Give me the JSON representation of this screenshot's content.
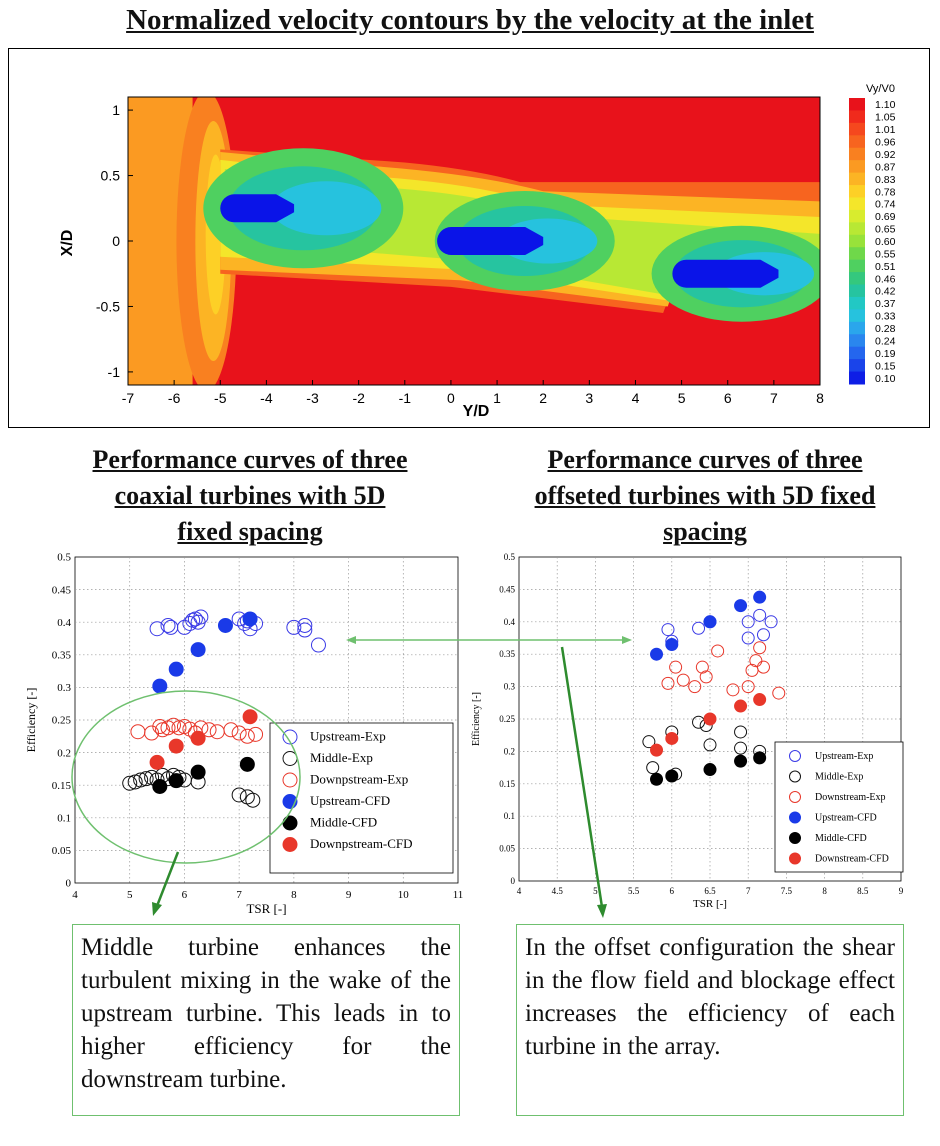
{
  "titles": {
    "top": "Normalized velocity contours by the velocity at the inlet",
    "left": "Performance curves of three\ncoaxial turbines with 5D\nfixed spacing",
    "right": "Performance curves of three\noffseted turbines with 5D fixed\nspacing"
  },
  "contour": {
    "xlabel": "Y/D",
    "ylabel": "X/D",
    "xticks": [
      "-7",
      "-6",
      "-5",
      "-4",
      "-3",
      "-2",
      "-1",
      "0",
      "1",
      "2",
      "3",
      "4",
      "5",
      "6",
      "7",
      "8"
    ],
    "yticks": [
      "1",
      "0.5",
      "0",
      "-0.5",
      "-1"
    ],
    "colorbar_title": "Vy/V0",
    "colorbar_levels": [
      "1.10",
      "1.05",
      "1.01",
      "0.96",
      "0.92",
      "0.87",
      "0.83",
      "0.78",
      "0.74",
      "0.69",
      "0.65",
      "0.60",
      "0.55",
      "0.51",
      "0.46",
      "0.42",
      "0.37",
      "0.33",
      "0.28",
      "0.24",
      "0.19",
      "0.15",
      "0.10"
    ],
    "colorbar_colors": [
      "#e8121b",
      "#f02a1c",
      "#f5481e",
      "#f7641f",
      "#f98020",
      "#fb9a22",
      "#fcb424",
      "#fdd026",
      "#f4e62a",
      "#d8ec2e",
      "#b8e834",
      "#98e23a",
      "#6fd84a",
      "#4fd060",
      "#34c87e",
      "#26c4a0",
      "#22c8c4",
      "#26c2de",
      "#2aa6ec",
      "#2a86ee",
      "#2466ee",
      "#1a44ea",
      "#0e1ee6"
    ]
  },
  "chart_data": [
    {
      "type": "scatter",
      "title": "",
      "xlabel": "TSR [-]",
      "ylabel": "Efficiency [-]",
      "xlim": [
        4,
        11
      ],
      "ylim": [
        0,
        0.5
      ],
      "xticks": [
        "4",
        "5",
        "6",
        "7",
        "8",
        "9",
        "10",
        "11"
      ],
      "yticks": [
        "0",
        "0.05",
        "0.1",
        "0.15",
        "0.2",
        "0.25",
        "0.3",
        "0.35",
        "0.4",
        "0.45",
        "0.5"
      ],
      "legend_position": "lower-right",
      "series": [
        {
          "name": "Upstream-Exp",
          "color": "#3a3ae6",
          "filled": false,
          "points": [
            [
              5.5,
              0.39
            ],
            [
              5.7,
              0.395
            ],
            [
              5.75,
              0.392
            ],
            [
              6.0,
              0.392
            ],
            [
              6.1,
              0.398
            ],
            [
              6.15,
              0.403
            ],
            [
              6.2,
              0.405
            ],
            [
              6.25,
              0.4
            ],
            [
              6.3,
              0.408
            ],
            [
              7.0,
              0.405
            ],
            [
              7.1,
              0.398
            ],
            [
              7.15,
              0.402
            ],
            [
              7.2,
              0.39
            ],
            [
              7.3,
              0.398
            ],
            [
              8.0,
              0.392
            ],
            [
              8.2,
              0.395
            ],
            [
              8.2,
              0.388
            ],
            [
              8.45,
              0.365
            ]
          ]
        },
        {
          "name": "Middle-Exp",
          "color": "#111111",
          "filled": false,
          "points": [
            [
              5.0,
              0.153
            ],
            [
              5.1,
              0.155
            ],
            [
              5.2,
              0.158
            ],
            [
              5.3,
              0.16
            ],
            [
              5.4,
              0.162
            ],
            [
              5.5,
              0.158
            ],
            [
              5.6,
              0.165
            ],
            [
              5.7,
              0.16
            ],
            [
              5.8,
              0.165
            ],
            [
              5.9,
              0.162
            ],
            [
              6.0,
              0.158
            ],
            [
              6.25,
              0.155
            ],
            [
              7.0,
              0.135
            ],
            [
              7.15,
              0.132
            ],
            [
              7.25,
              0.127
            ]
          ]
        },
        {
          "name": "Downpstream-Exp",
          "color": "#e8372a",
          "filled": false,
          "points": [
            [
              5.15,
              0.232
            ],
            [
              5.4,
              0.23
            ],
            [
              5.55,
              0.24
            ],
            [
              5.6,
              0.235
            ],
            [
              5.7,
              0.238
            ],
            [
              5.8,
              0.242
            ],
            [
              5.9,
              0.238
            ],
            [
              6.0,
              0.24
            ],
            [
              6.1,
              0.236
            ],
            [
              6.2,
              0.23
            ],
            [
              6.3,
              0.238
            ],
            [
              6.45,
              0.235
            ],
            [
              6.6,
              0.232
            ],
            [
              6.85,
              0.235
            ],
            [
              7.0,
              0.23
            ],
            [
              7.15,
              0.225
            ],
            [
              7.3,
              0.228
            ]
          ]
        },
        {
          "name": "Upstream-CFD",
          "color": "#1a3ae8",
          "filled": true,
          "points": [
            [
              5.55,
              0.302
            ],
            [
              5.85,
              0.328
            ],
            [
              6.25,
              0.358
            ],
            [
              6.75,
              0.395
            ],
            [
              7.2,
              0.405
            ]
          ]
        },
        {
          "name": "Middle-CFD",
          "color": "#000000",
          "filled": true,
          "points": [
            [
              5.55,
              0.148
            ],
            [
              5.85,
              0.157
            ],
            [
              6.25,
              0.17
            ],
            [
              7.15,
              0.182
            ]
          ]
        },
        {
          "name": "Downpstream-CFD",
          "color": "#e8372a",
          "filled": true,
          "points": [
            [
              5.5,
              0.185
            ],
            [
              5.85,
              0.21
            ],
            [
              6.25,
              0.222
            ],
            [
              7.2,
              0.255
            ]
          ]
        }
      ]
    },
    {
      "type": "scatter",
      "title": "",
      "xlabel": "TSR [-]",
      "ylabel": "Efficiency [-]",
      "xlim": [
        4,
        9
      ],
      "ylim": [
        0,
        0.5
      ],
      "xticks": [
        "4",
        "4.5",
        "5",
        "5.5",
        "6",
        "6.5",
        "7",
        "7.5",
        "8",
        "8.5",
        "9"
      ],
      "yticks": [
        "0",
        "0.05",
        "0.1",
        "0.15",
        "0.2",
        "0.25",
        "0.3",
        "0.35",
        "0.4",
        "0.45",
        "0.5"
      ],
      "legend_position": "lower-right",
      "series": [
        {
          "name": "Upstream-Exp",
          "color": "#3a3ae6",
          "filled": false,
          "points": [
            [
              5.95,
              0.388
            ],
            [
              6.0,
              0.37
            ],
            [
              6.35,
              0.39
            ],
            [
              6.5,
              0.4
            ],
            [
              7.0,
              0.375
            ],
            [
              7.0,
              0.4
            ],
            [
              7.15,
              0.41
            ],
            [
              7.2,
              0.38
            ],
            [
              7.3,
              0.4
            ]
          ]
        },
        {
          "name": "Middle-Exp",
          "color": "#111111",
          "filled": false,
          "points": [
            [
              5.7,
              0.215
            ],
            [
              5.75,
              0.175
            ],
            [
              6.0,
              0.23
            ],
            [
              6.05,
              0.165
            ],
            [
              6.35,
              0.245
            ],
            [
              6.45,
              0.24
            ],
            [
              6.5,
              0.21
            ],
            [
              6.9,
              0.205
            ],
            [
              6.9,
              0.23
            ],
            [
              7.15,
              0.2
            ]
          ]
        },
        {
          "name": "Downstream-Exp",
          "color": "#e8372a",
          "filled": false,
          "points": [
            [
              5.95,
              0.305
            ],
            [
              6.05,
              0.33
            ],
            [
              6.15,
              0.31
            ],
            [
              6.3,
              0.3
            ],
            [
              6.4,
              0.33
            ],
            [
              6.45,
              0.315
            ],
            [
              6.6,
              0.355
            ],
            [
              6.8,
              0.295
            ],
            [
              7.0,
              0.3
            ],
            [
              7.05,
              0.325
            ],
            [
              7.1,
              0.34
            ],
            [
              7.15,
              0.36
            ],
            [
              7.2,
              0.33
            ],
            [
              7.4,
              0.29
            ]
          ]
        },
        {
          "name": "Upstream-CFD",
          "color": "#1a3ae8",
          "filled": true,
          "points": [
            [
              5.8,
              0.35
            ],
            [
              6.0,
              0.365
            ],
            [
              6.5,
              0.4
            ],
            [
              6.9,
              0.425
            ],
            [
              7.15,
              0.438
            ]
          ]
        },
        {
          "name": "Middle-CFD",
          "color": "#000000",
          "filled": true,
          "points": [
            [
              5.8,
              0.157
            ],
            [
              6.0,
              0.162
            ],
            [
              6.5,
              0.172
            ],
            [
              6.9,
              0.185
            ],
            [
              7.15,
              0.19
            ]
          ]
        },
        {
          "name": "Downstream-CFD",
          "color": "#e8372a",
          "filled": true,
          "points": [
            [
              5.8,
              0.202
            ],
            [
              6.0,
              0.22
            ],
            [
              6.5,
              0.25
            ],
            [
              6.9,
              0.27
            ],
            [
              7.15,
              0.28
            ]
          ]
        }
      ]
    }
  ],
  "notes": {
    "left": "Middle turbine enhances the turbulent mixing in the wake of the upstream turbine. This leads in to higher efficiency for the downstream turbine.",
    "right": "In the offset configuration the shear in the flow field and blockage effect increases the efficiency of each turbine in the array."
  }
}
